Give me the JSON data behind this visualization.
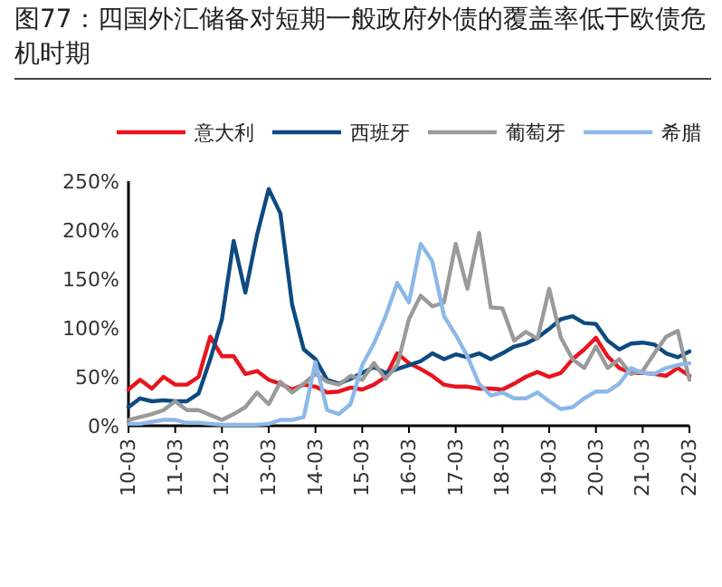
{
  "chart_data": {
    "type": "line",
    "title": "图77：四国外汇储备对短期一般政府外债的覆盖率低于欧债危机时期",
    "categories": [
      "10-03",
      null,
      null,
      null,
      "11-03",
      null,
      null,
      null,
      "12-03",
      null,
      null,
      null,
      "13-03",
      null,
      null,
      null,
      "14-03",
      null,
      null,
      null,
      "15-03",
      null,
      null,
      null,
      "16-03",
      null,
      null,
      null,
      "17-03",
      null,
      null,
      null,
      "18-03",
      null,
      null,
      null,
      "19-03",
      null,
      null,
      null,
      "20-03",
      null,
      null,
      null,
      "21-03",
      null,
      null,
      null,
      "22-03"
    ],
    "series": [
      {
        "name": "意大利",
        "color": "#e8141e",
        "values": [
          37,
          47,
          38,
          50,
          42,
          42,
          50,
          91,
          71,
          71,
          53,
          56,
          47,
          43,
          37,
          42,
          40,
          34,
          35,
          39,
          37,
          42,
          50,
          74,
          64,
          58,
          51,
          42,
          40,
          40,
          38,
          38,
          37,
          43,
          50,
          55,
          50,
          54,
          68,
          78,
          90,
          71,
          59,
          54,
          54,
          53,
          51,
          59,
          51
        ]
      },
      {
        "name": "西班牙",
        "color": "#0d4a80",
        "values": [
          19,
          28,
          25,
          26,
          25,
          25,
          33,
          68,
          109,
          189,
          136,
          195,
          242,
          217,
          124,
          78,
          68,
          47,
          43,
          48,
          54,
          60,
          54,
          58,
          62,
          66,
          74,
          68,
          73,
          70,
          74,
          68,
          74,
          81,
          84,
          90,
          99,
          109,
          112,
          105,
          104,
          87,
          78,
          84,
          85,
          83,
          74,
          70,
          76
        ]
      },
      {
        "name": "葡萄牙",
        "color": "#9a9a9a",
        "values": [
          6,
          9,
          12,
          16,
          25,
          16,
          16,
          11,
          6,
          12,
          19,
          34,
          22,
          45,
          34,
          43,
          53,
          45,
          42,
          51,
          47,
          64,
          48,
          62,
          109,
          133,
          122,
          126,
          186,
          140,
          197,
          121,
          120,
          87,
          96,
          89,
          140,
          90,
          68,
          59,
          81,
          59,
          68,
          53,
          56,
          74,
          91,
          97,
          47
        ]
      },
      {
        "name": "希腊",
        "color": "#8db8e8",
        "values": [
          2,
          2,
          4,
          6,
          6,
          3,
          3,
          2,
          1,
          1,
          1,
          1,
          2,
          6,
          6,
          9,
          65,
          16,
          12,
          22,
          62,
          84,
          112,
          146,
          126,
          186,
          168,
          112,
          93,
          71,
          43,
          31,
          34,
          28,
          28,
          34,
          25,
          17,
          19,
          28,
          35,
          35,
          43,
          59,
          54,
          53,
          59,
          62,
          64
        ]
      }
    ],
    "ylim": [
      0,
      250
    ],
    "yticks": [
      {
        "value": 0,
        "label": "0%"
      },
      {
        "value": 50,
        "label": "50%"
      },
      {
        "value": 100,
        "label": "100%"
      },
      {
        "value": 150,
        "label": "150%"
      },
      {
        "value": 200,
        "label": "200%"
      },
      {
        "value": 250,
        "label": "250%"
      }
    ],
    "legend": "top",
    "line_style": "solid",
    "marker": "none"
  }
}
